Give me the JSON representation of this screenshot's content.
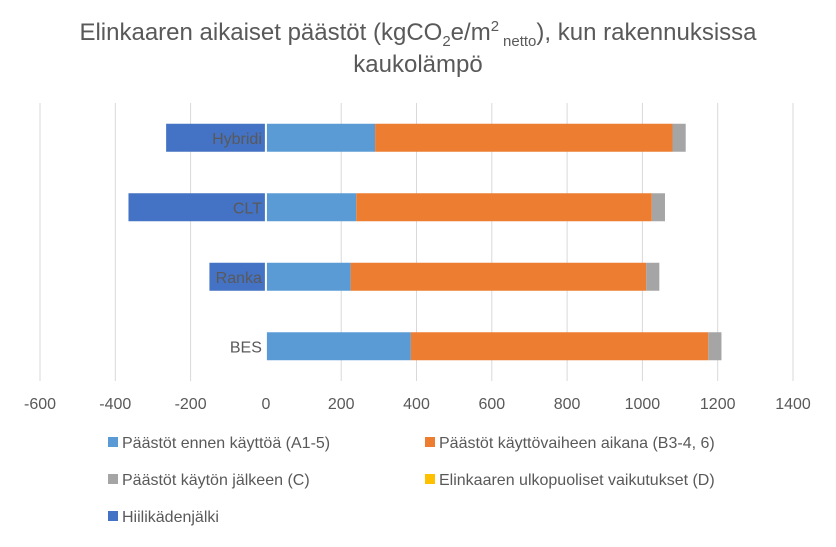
{
  "chart_data": {
    "type": "bar",
    "orientation": "horizontal",
    "stacked": true,
    "title_parts": {
      "prefix": "Elinkaaren aikaiset päästöt (kgCO",
      "sub1": "2",
      "mid": "e/m",
      "sup": "2",
      "sub2": "netto",
      "suffix": "), kun rakennuksissa",
      "line2": "kaukolämpö"
    },
    "categories": [
      "Hybridi",
      "CLT",
      "Ranka",
      "BES"
    ],
    "series": [
      {
        "name": "Päästöt ennen käyttöä (A1-5)",
        "color": "#5b9bd5",
        "values": [
          290,
          240,
          225,
          385
        ]
      },
      {
        "name": "Päästöt käyttövaiheen aikana (B3-4, 6)",
        "color": "#ed7d31",
        "values": [
          790,
          785,
          785,
          790
        ]
      },
      {
        "name": "Päästöt käytön jälkeen (C)",
        "color": "#a5a5a5",
        "values": [
          35,
          35,
          35,
          35
        ]
      },
      {
        "name": "Elinkaaren ulkopuoliset vaikutukset (D)",
        "color": "#ffc000",
        "values": [
          0,
          0,
          0,
          0
        ]
      },
      {
        "name": "Hiilikädenjälki",
        "color": "#4472c4",
        "values": [
          -265,
          -365,
          -150,
          0
        ]
      }
    ],
    "xlim": [
      -600,
      1400
    ],
    "xticks": [
      -600,
      -400,
      -200,
      0,
      200,
      400,
      600,
      800,
      1000,
      1200,
      1400
    ],
    "xtick_labels": [
      "-600",
      "-400",
      "-200",
      "0",
      "200",
      "400",
      "600",
      "800",
      "1000",
      "1200",
      "1400"
    ],
    "xlabel": "",
    "ylabel": "",
    "grid": "vertical",
    "legend_position": "bottom"
  }
}
